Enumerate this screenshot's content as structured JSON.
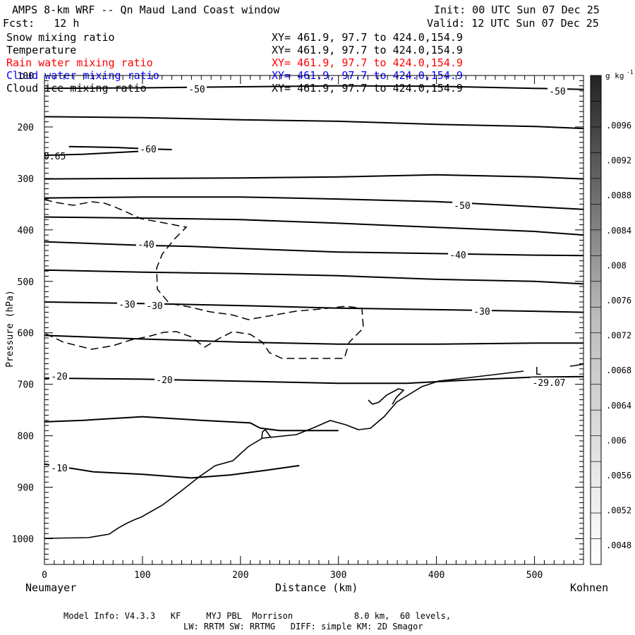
{
  "header": {
    "title": "AMPS 8-km WRF -- Qn Maud Land Coast window",
    "init": "Init: 00 UTC Sun 07 Dec 25",
    "fcst": "Fcst:   12 h",
    "valid": "Valid: 12 UTC Sun 07 Dec 25"
  },
  "fields": [
    {
      "name": "Snow mixing ratio",
      "xy": "XY= 461.9, 97.7 to 424.0,154.9",
      "color": "#000000"
    },
    {
      "name": "Temperature",
      "xy": "XY= 461.9, 97.7 to 424.0,154.9",
      "color": "#000000"
    },
    {
      "name": "Rain water mixing ratio",
      "xy": "XY= 461.9, 97.7 to 424.0,154.9",
      "color": "#ff0000"
    },
    {
      "name": "Cloud water mixing ratio",
      "xy": "XY= 461.9, 97.7 to 424.0,154.9",
      "color": "#0000ff"
    },
    {
      "name": "Cloud ice mixing ratio",
      "xy": "XY= 461.9, 97.7 to 424.0,154.9",
      "color": "#000000"
    }
  ],
  "footer": {
    "line1": "Model Info: V4.3.3   KF     MYJ PBL  Morrison            8.0 km,  60 levels,",
    "line2": "LW: RRTM SW: RRTMG   DIFF: simple KM: 2D Smagor"
  },
  "chart_data": {
    "type": "contour",
    "xlabel": "Distance (km)",
    "ylabel": "Pressure (hPa)",
    "xlim": [
      0,
      550
    ],
    "ylim": [
      1050,
      100
    ],
    "x_ticks": [
      0,
      100,
      200,
      300,
      400,
      500
    ],
    "y_ticks": [
      100,
      200,
      300,
      400,
      500,
      600,
      700,
      800,
      900,
      1000
    ],
    "x_end_labels": {
      "left": "Neumayer",
      "right": "Kohnen"
    },
    "colorbar": {
      "unit": "g kg",
      "unit_exp": "-1",
      "labels": [
        ".0096",
        ".0092",
        ".0088",
        ".0084",
        ".008",
        ".0076",
        ".0072",
        ".0068",
        ".0064",
        ".006",
        ".0056",
        ".0052",
        ".0048"
      ]
    },
    "isotherms": [
      {
        "name": "-50",
        "points": [
          [
            0,
            125
          ],
          [
            100,
            124
          ],
          [
            200,
            122
          ],
          [
            300,
            120
          ],
          [
            400,
            121
          ],
          [
            500,
            125
          ],
          [
            550,
            127
          ]
        ]
      },
      {
        "name": "",
        "points": [
          [
            0,
            180
          ],
          [
            100,
            182
          ],
          [
            200,
            186
          ],
          [
            300,
            189
          ],
          [
            400,
            195
          ],
          [
            500,
            199
          ],
          [
            550,
            203
          ]
        ]
      },
      {
        "name": "-60",
        "points": [
          [
            25,
            238
          ],
          [
            75,
            240
          ],
          [
            110,
            243
          ],
          [
            130,
            244
          ]
        ]
      },
      {
        "name": "",
        "points": [
          [
            0,
            255
          ],
          [
            40,
            253
          ],
          [
            80,
            249
          ],
          [
            110,
            246
          ]
        ]
      },
      {
        "name": "",
        "points": [
          [
            0,
            301
          ],
          [
            100,
            300
          ],
          [
            200,
            299
          ],
          [
            300,
            297
          ],
          [
            400,
            293
          ],
          [
            500,
            297
          ],
          [
            550,
            301
          ]
        ]
      },
      {
        "name": "-50",
        "points": [
          [
            0,
            338
          ],
          [
            100,
            336
          ],
          [
            200,
            336
          ],
          [
            300,
            340
          ],
          [
            400,
            345
          ],
          [
            470,
            352
          ],
          [
            550,
            360
          ]
        ]
      },
      {
        "name": "",
        "points": [
          [
            0,
            375
          ],
          [
            100,
            377
          ],
          [
            200,
            380
          ],
          [
            300,
            387
          ],
          [
            400,
            395
          ],
          [
            500,
            403
          ],
          [
            550,
            410
          ]
        ]
      },
      {
        "name": "-40",
        "points": [
          [
            0,
            423
          ],
          [
            100,
            430
          ],
          [
            150,
            432
          ],
          [
            200,
            436
          ],
          [
            300,
            443
          ],
          [
            400,
            446
          ],
          [
            500,
            449
          ],
          [
            550,
            450
          ]
        ]
      },
      {
        "name": "",
        "points": [
          [
            0,
            478
          ],
          [
            100,
            482
          ],
          [
            200,
            485
          ],
          [
            300,
            489
          ],
          [
            400,
            496
          ],
          [
            500,
            500
          ],
          [
            550,
            505
          ]
        ]
      },
      {
        "name": "-30",
        "points": [
          [
            0,
            540
          ],
          [
            100,
            543
          ],
          [
            200,
            547
          ],
          [
            300,
            552
          ],
          [
            400,
            555
          ],
          [
            500,
            558
          ],
          [
            550,
            560
          ]
        ]
      },
      {
        "name": "",
        "points": [
          [
            0,
            605
          ],
          [
            100,
            612
          ],
          [
            200,
            618
          ],
          [
            300,
            622
          ],
          [
            400,
            622
          ],
          [
            500,
            620
          ],
          [
            550,
            620
          ]
        ]
      },
      {
        "name": "-20",
        "points": [
          [
            0,
            688
          ],
          [
            100,
            690
          ],
          [
            200,
            694
          ],
          [
            300,
            698
          ],
          [
            370,
            698
          ],
          [
            400,
            695
          ],
          [
            450,
            690
          ],
          [
            500,
            686
          ],
          [
            550,
            685
          ]
        ]
      },
      {
        "name": "-10",
        "points": [
          [
            0,
            855
          ],
          [
            50,
            870
          ],
          [
            100,
            875
          ],
          [
            150,
            882
          ],
          [
            190,
            876
          ],
          [
            230,
            866
          ],
          [
            260,
            858
          ]
        ]
      },
      {
        "name": "",
        "points": [
          [
            0,
            773
          ],
          [
            40,
            770
          ],
          [
            100,
            763
          ],
          [
            160,
            770
          ],
          [
            210,
            775
          ],
          [
            220,
            785
          ],
          [
            240,
            790
          ],
          [
            300,
            790
          ]
        ]
      }
    ],
    "min_label": "L",
    "min_value": "-29.07",
    "min_location_km": 500,
    "min_pressure_hpa": 690,
    "snow_contour_label": "0.65"
  }
}
